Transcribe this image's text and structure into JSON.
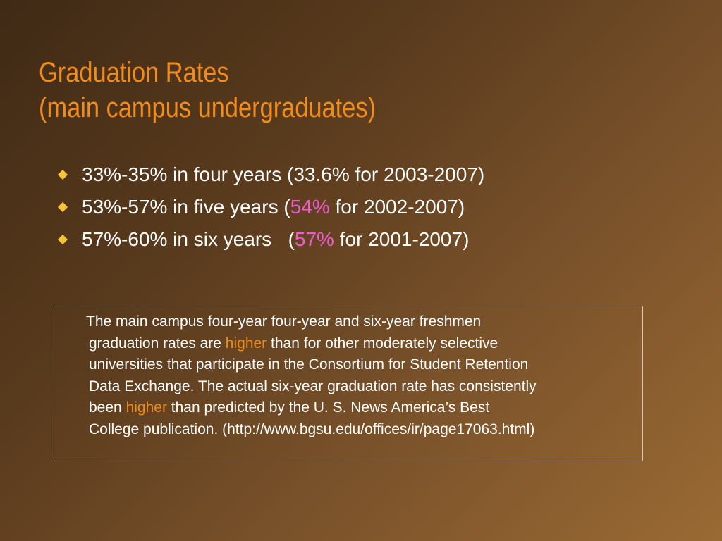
{
  "slide": {
    "title_line1": "Graduation Rates",
    "title_line2": "(main campus undergraduates)",
    "bullets": [
      {
        "pre": "33%-35% in four years (33.6% for 2003-2007)",
        "highlight": "",
        "post": ""
      },
      {
        "pre": "53%-57% in five years (",
        "highlight": "54%",
        "post": " for 2002-2007)"
      },
      {
        "pre": "57%-60% in six years   (",
        "highlight": "57%",
        "post": " for 2001-2007)"
      }
    ],
    "note": {
      "line1": "The main campus four-year four-year and six-year freshmen",
      "line2_pre": "graduation rates are ",
      "line2_hl": "higher",
      "line2_post": " than for other moderately selective",
      "line3": "universities that participate in the Consortium for Student Retention",
      "line4": "Data Exchange. The actual six-year graduation rate has consistently",
      "line5_pre": "been ",
      "line5_hl": "higher",
      "line5_post": " than predicted by the U. S. News America’s Best",
      "line6": "College publication. (http://www.bgsu.edu/offices/ir/page17063.html)"
    },
    "colors": {
      "title": "#f08c1e",
      "bullet_marker": "#f7c23a",
      "highlight_pink": "#f25ad2",
      "highlight_orange": "#f08c1e",
      "text": "#ffffff"
    }
  }
}
